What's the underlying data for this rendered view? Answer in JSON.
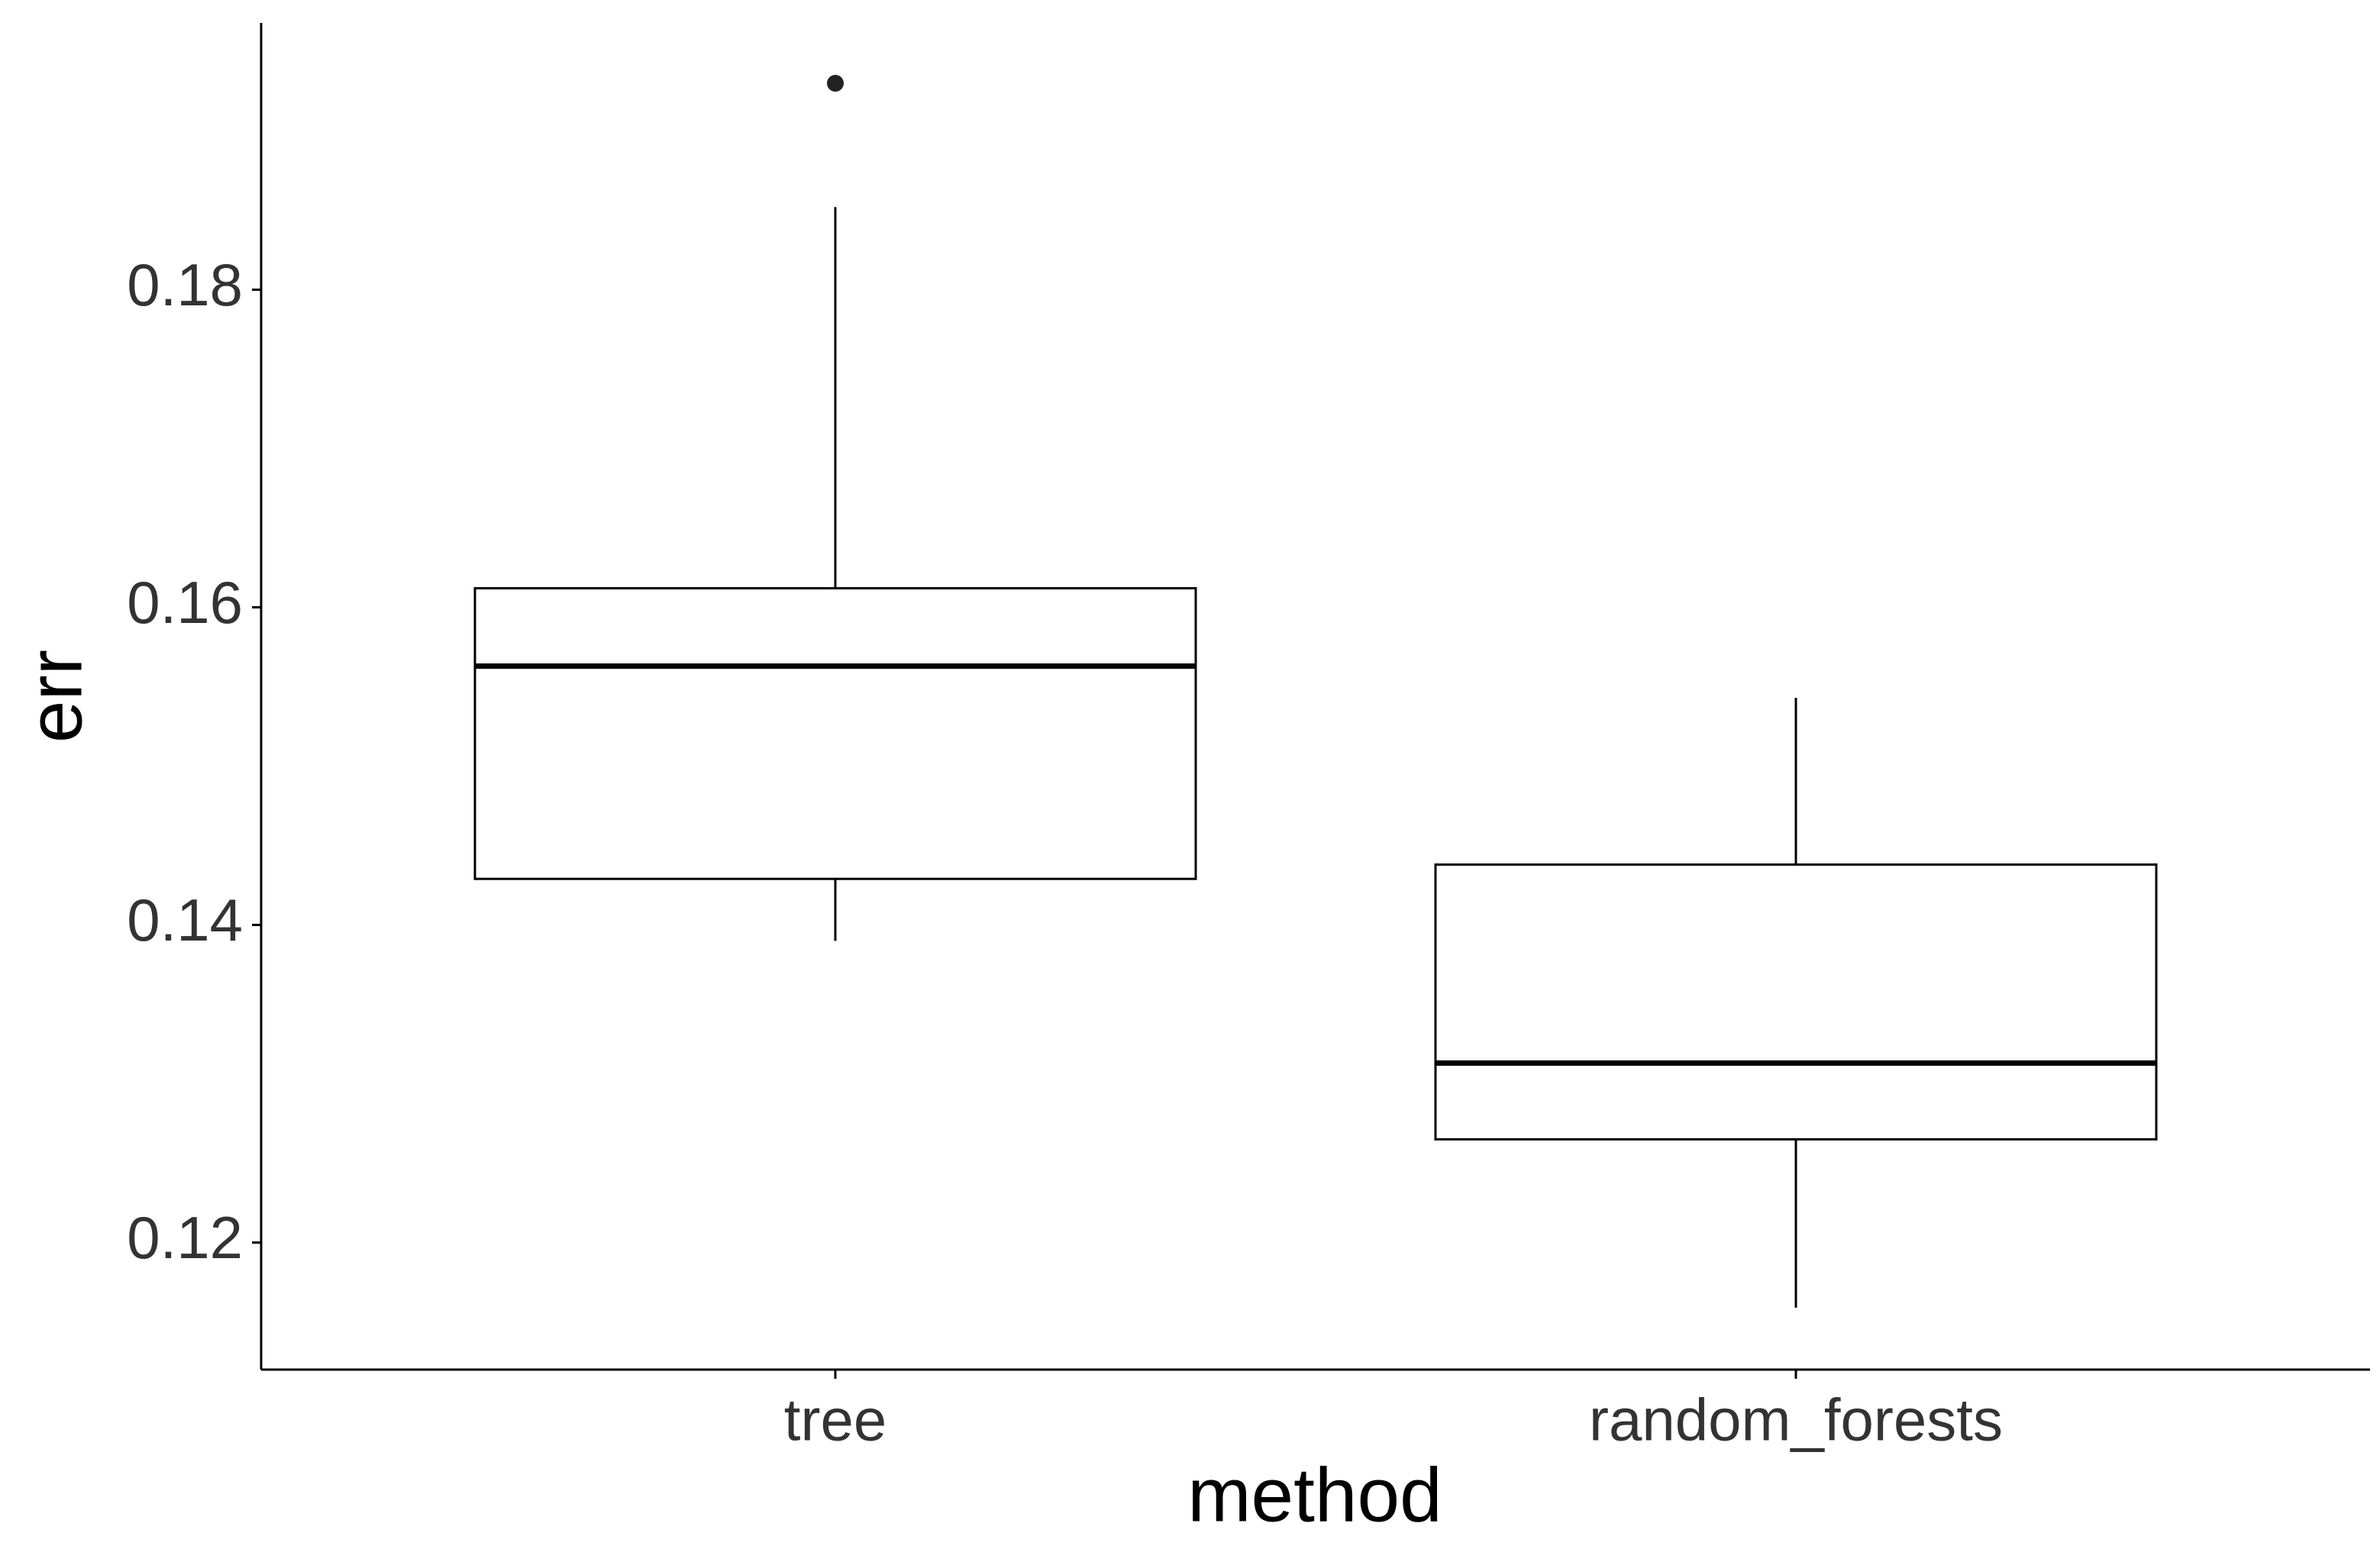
{
  "chart_data": {
    "type": "box",
    "x_label": "method",
    "y_label": "err",
    "categories": [
      "tree",
      "random_forests"
    ],
    "boxes": [
      {
        "whislo": 0.139,
        "q1": 0.1429,
        "med": 0.1563,
        "q3": 0.1612,
        "whishi": 0.1852,
        "fliers": [
          0.193
        ]
      },
      {
        "whislo": 0.1159,
        "q1": 0.1265,
        "med": 0.1313,
        "q3": 0.1438,
        "whishi": 0.1543,
        "fliers": []
      }
    ],
    "color": "#000000",
    "ylim": [
      0.112,
      0.1968
    ],
    "yticks": [
      0.12,
      0.14,
      0.16,
      0.18
    ],
    "grid": false
  }
}
